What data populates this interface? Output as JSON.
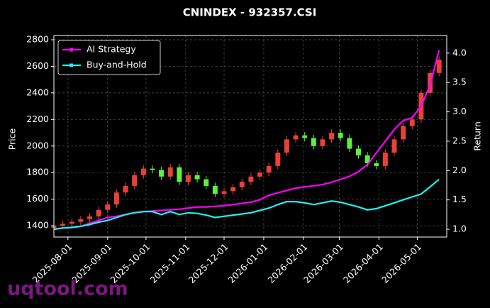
{
  "chart_data": {
    "type": "candlestick",
    "title": "CNINDEX - 932357.CSI",
    "ylabel": "Price",
    "y2label": "Return",
    "watermark": "uqtool.com",
    "x": [
      "2025-07-21",
      "2025-07-28",
      "2025-08-04",
      "2025-08-11",
      "2025-08-18",
      "2025-08-25",
      "2025-09-01",
      "2025-09-08",
      "2025-09-15",
      "2025-09-22",
      "2025-09-29",
      "2025-10-06",
      "2025-10-13",
      "2025-10-20",
      "2025-10-27",
      "2025-11-03",
      "2025-11-10",
      "2025-11-17",
      "2025-11-24",
      "2025-12-01",
      "2025-12-08",
      "2025-12-15",
      "2025-12-22",
      "2025-12-29",
      "2026-01-05",
      "2026-01-12",
      "2026-01-19",
      "2026-01-26",
      "2026-02-02",
      "2026-02-09",
      "2026-02-16",
      "2026-02-23",
      "2026-03-02",
      "2026-03-09",
      "2026-03-16",
      "2026-03-23",
      "2026-03-30",
      "2026-04-06",
      "2026-04-13",
      "2026-04-20",
      "2026-04-27",
      "2026-05-04",
      "2026-05-11",
      "2026-05-18"
    ],
    "open": [
      1385,
      1400,
      1415,
      1430,
      1450,
      1470,
      1520,
      1560,
      1650,
      1700,
      1780,
      1830,
      1820,
      1770,
      1840,
      1730,
      1780,
      1750,
      1700,
      1640,
      1660,
      1690,
      1730,
      1770,
      1800,
      1850,
      1950,
      2050,
      2080,
      2060,
      2000,
      2050,
      2100,
      2060,
      1980,
      1930,
      1870,
      1850,
      1950,
      2050,
      2150,
      2200,
      2400,
      2550
    ],
    "high": [
      1425,
      1440,
      1455,
      1475,
      1495,
      1545,
      1585,
      1675,
      1725,
      1805,
      1855,
      1855,
      1845,
      1865,
      1865,
      1805,
      1805,
      1775,
      1725,
      1685,
      1715,
      1755,
      1795,
      1825,
      1875,
      1975,
      2075,
      2105,
      2105,
      2085,
      2075,
      2125,
      2125,
      2085,
      2005,
      1955,
      1895,
      1975,
      2075,
      2175,
      2225,
      2425,
      2575,
      2675
    ],
    "low": [
      1360,
      1375,
      1390,
      1405,
      1425,
      1445,
      1495,
      1535,
      1625,
      1675,
      1755,
      1795,
      1745,
      1745,
      1705,
      1705,
      1725,
      1675,
      1615,
      1615,
      1635,
      1665,
      1705,
      1745,
      1775,
      1825,
      1925,
      2025,
      2035,
      1975,
      1975,
      2025,
      2035,
      1955,
      1905,
      1845,
      1825,
      1825,
      1925,
      2025,
      2125,
      2175,
      2375,
      2525
    ],
    "close": [
      1400,
      1415,
      1430,
      1450,
      1470,
      1520,
      1560,
      1650,
      1700,
      1780,
      1830,
      1820,
      1770,
      1840,
      1730,
      1780,
      1750,
      1700,
      1640,
      1660,
      1690,
      1730,
      1770,
      1800,
      1850,
      1950,
      2050,
      2080,
      2060,
      2000,
      2050,
      2100,
      2060,
      1980,
      1930,
      1870,
      1850,
      1950,
      2050,
      2150,
      2200,
      2400,
      2550,
      2650
    ],
    "up_color": "#e8413a",
    "down_color": "#5ef03c",
    "series": [
      {
        "name": "AI Strategy",
        "color": "#ff00ff",
        "axis": "y2",
        "values": [
          1.0,
          1.02,
          1.03,
          1.05,
          1.1,
          1.15,
          1.2,
          1.22,
          1.25,
          1.28,
          1.3,
          1.31,
          1.32,
          1.33,
          1.34,
          1.36,
          1.38,
          1.38,
          1.39,
          1.4,
          1.42,
          1.44,
          1.46,
          1.5,
          1.58,
          1.62,
          1.66,
          1.7,
          1.72,
          1.74,
          1.76,
          1.8,
          1.85,
          1.9,
          1.98,
          2.1,
          2.3,
          2.5,
          2.7,
          2.85,
          2.9,
          3.1,
          3.45,
          4.05
        ]
      },
      {
        "name": "Buy-and-Hold",
        "color": "#22f0f0",
        "axis": "y2",
        "values": [
          1.0,
          1.02,
          1.03,
          1.05,
          1.08,
          1.12,
          1.15,
          1.2,
          1.25,
          1.28,
          1.3,
          1.3,
          1.25,
          1.3,
          1.25,
          1.28,
          1.27,
          1.24,
          1.2,
          1.22,
          1.24,
          1.26,
          1.28,
          1.32,
          1.36,
          1.42,
          1.47,
          1.47,
          1.45,
          1.42,
          1.45,
          1.48,
          1.46,
          1.42,
          1.38,
          1.33,
          1.35,
          1.4,
          1.45,
          1.5,
          1.55,
          1.6,
          1.72,
          1.85
        ]
      }
    ],
    "xlim": [
      "2025-07-21",
      "2026-05-24"
    ],
    "xticks": [
      "2025-08-01",
      "2025-09-01",
      "2025-10-01",
      "2025-11-01",
      "2025-12-01",
      "2026-01-01",
      "2026-02-01",
      "2026-03-01",
      "2026-04-01",
      "2026-05-01"
    ],
    "ylim": [
      1315,
      2832
    ],
    "yticks": [
      1400,
      1600,
      1800,
      2000,
      2200,
      2400,
      2600,
      2800
    ],
    "y2lim": [
      0.867,
      4.3
    ],
    "y2ticks": [
      {
        "value": 1,
        "label": "1.0"
      },
      {
        "value": 1.5,
        "label": "1.5"
      },
      {
        "value": 2,
        "label": "2.0"
      },
      {
        "value": 2.5,
        "label": "2.5"
      },
      {
        "value": 3,
        "label": "3.0"
      },
      {
        "value": 3.5,
        "label": "3.5"
      },
      {
        "value": 4,
        "label": "4.0"
      }
    ],
    "grid": true,
    "legend": "upper left"
  }
}
